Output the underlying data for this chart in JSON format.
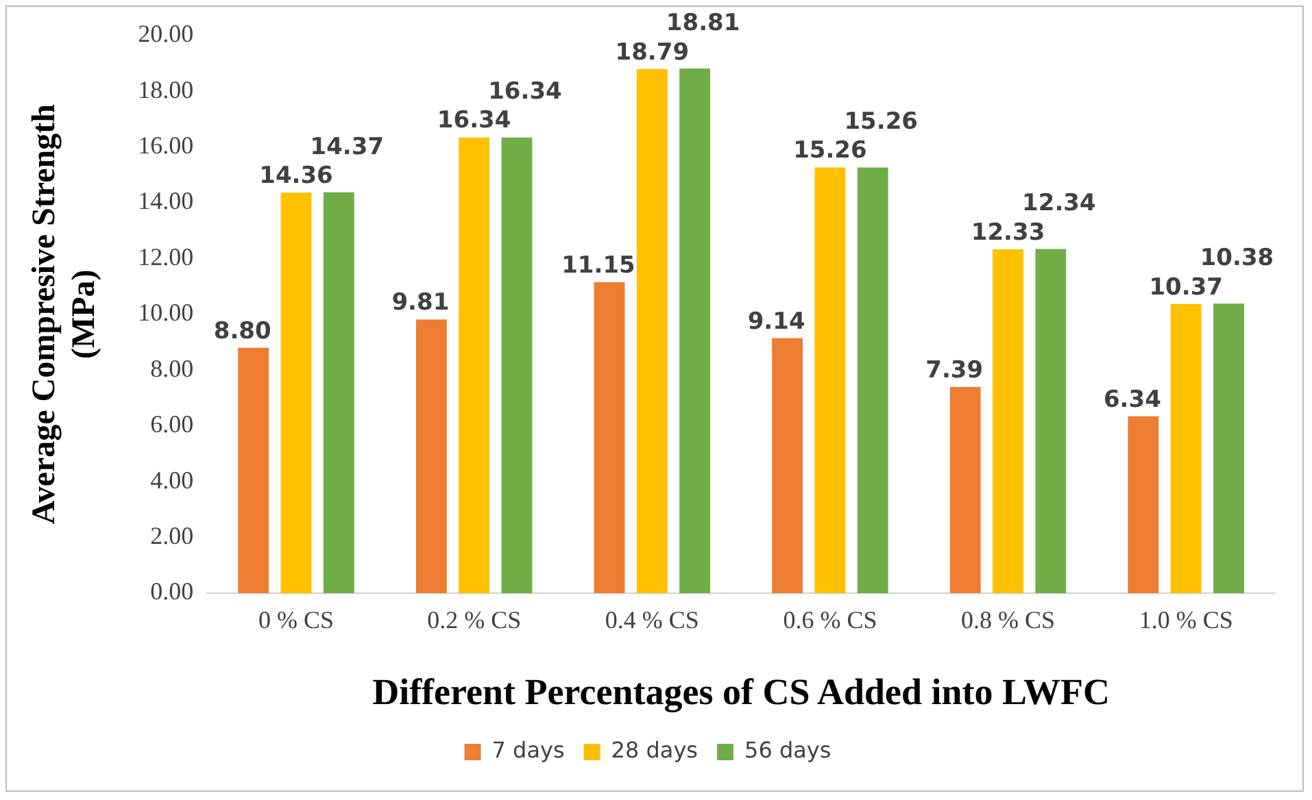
{
  "chart_data": {
    "type": "bar",
    "xlabel": "Different Percentages of CS Added into LWFC",
    "ylabel": "Average Compresive Strength (MPa)",
    "categories": [
      "0 % CS",
      "0.2 % CS",
      "0.4 % CS",
      "0.6 % CS",
      "0.8 % CS",
      "1.0 % CS"
    ],
    "series": [
      {
        "name": "7 days",
        "color": "#ed7d31",
        "values": [
          8.8,
          9.81,
          11.15,
          9.14,
          7.39,
          6.34
        ],
        "value_labels": [
          "8.80",
          "9.81",
          "11.15",
          "9.14",
          "7.39",
          "6.34"
        ]
      },
      {
        "name": "28 days",
        "color": "#ffc000",
        "values": [
          14.36,
          16.34,
          18.79,
          15.26,
          12.33,
          10.37
        ],
        "value_labels": [
          "14.36",
          "16.34",
          "18.79",
          "15.26",
          "12.33",
          "10.37"
        ]
      },
      {
        "name": "56 days",
        "color": "#70ad47",
        "values": [
          14.37,
          16.34,
          18.81,
          15.26,
          12.34,
          10.38
        ],
        "value_labels": [
          "14.37",
          "16.34",
          "18.81",
          "15.26",
          "12.34",
          "10.38"
        ]
      }
    ],
    "ylim": [
      0,
      20
    ],
    "yticks": [
      {
        "value": 0,
        "label": "0.00"
      },
      {
        "value": 2,
        "label": "2.00"
      },
      {
        "value": 4,
        "label": "4.00"
      },
      {
        "value": 6,
        "label": "6.00"
      },
      {
        "value": 8,
        "label": "8.00"
      },
      {
        "value": 10,
        "label": "10.00"
      },
      {
        "value": 12,
        "label": "12.00"
      },
      {
        "value": 14,
        "label": "14.00"
      },
      {
        "value": 16,
        "label": "16.00"
      },
      {
        "value": 18,
        "label": "18.00"
      },
      {
        "value": 20,
        "label": "20.00"
      }
    ],
    "grid": false,
    "legend": "bottom"
  }
}
